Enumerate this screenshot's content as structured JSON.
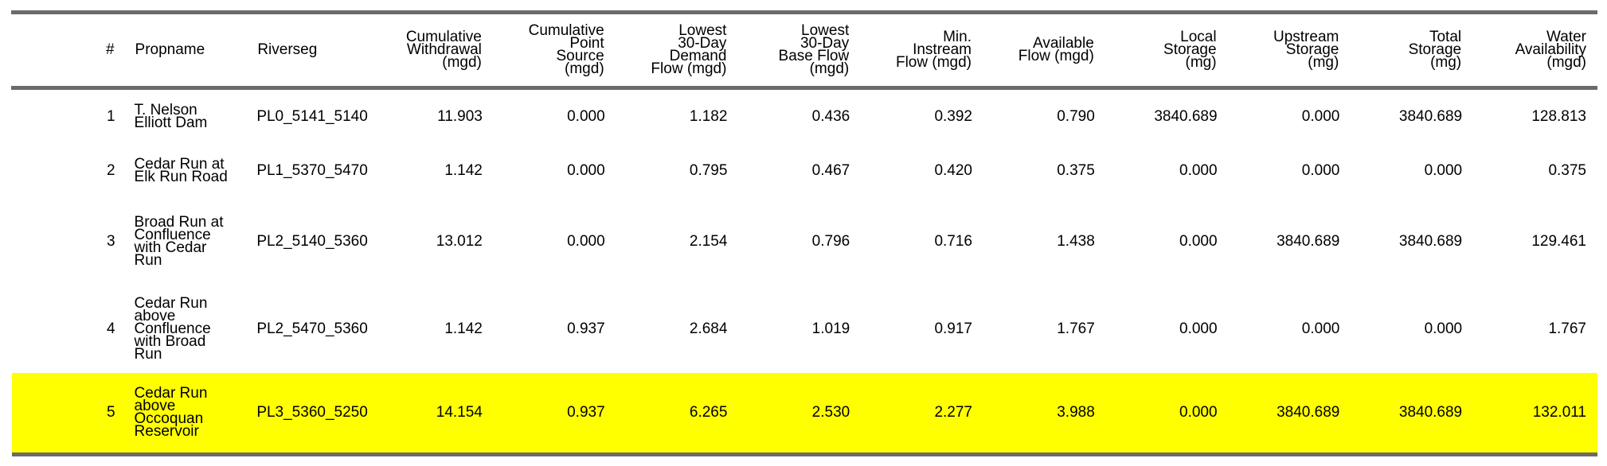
{
  "table": {
    "columns": [
      {
        "key": "idx",
        "label": "#",
        "align": "num"
      },
      {
        "key": "propname",
        "label": "Propname",
        "align": "txt"
      },
      {
        "key": "riverseg",
        "label": "Riverseg",
        "align": "txt"
      },
      {
        "key": "cum_withdrawal",
        "label": "Cumulative\nWithdrawal\n(mgd)",
        "align": "num"
      },
      {
        "key": "cum_point_source",
        "label": "Cumulative\nPoint\nSource\n(mgd)",
        "align": "num"
      },
      {
        "key": "lowest_demand",
        "label": "Lowest\n30-Day\nDemand\nFlow (mgd)",
        "align": "num"
      },
      {
        "key": "lowest_base",
        "label": "Lowest\n30-Day\nBase Flow\n(mgd)",
        "align": "num"
      },
      {
        "key": "min_instream",
        "label": "Min.\nInstream\nFlow (mgd)",
        "align": "num"
      },
      {
        "key": "available_flow",
        "label": "Available\nFlow (mgd)",
        "align": "num"
      },
      {
        "key": "local_storage",
        "label": "Local\nStorage\n(mg)",
        "align": "num"
      },
      {
        "key": "upstream_storage",
        "label": "Upstream\nStorage\n(mg)",
        "align": "num"
      },
      {
        "key": "total_storage",
        "label": "Total\nStorage\n(mg)",
        "align": "num"
      },
      {
        "key": "water_availability",
        "label": "Water\nAvailability\n(mgd)",
        "align": "num"
      }
    ],
    "rows": [
      {
        "idx": "1",
        "propname": "T. Nelson Elliott Dam",
        "riverseg": "PL0_5141_5140",
        "cum_withdrawal": "11.903",
        "cum_point_source": "0.000",
        "lowest_demand": "1.182",
        "lowest_base": "0.436",
        "min_instream": "0.392",
        "available_flow": "0.790",
        "local_storage": "3840.689",
        "upstream_storage": "0.000",
        "total_storage": "3840.689",
        "water_availability": "128.813"
      },
      {
        "idx": "2",
        "propname": "Cedar Run at Elk Run Road",
        "riverseg": "PL1_5370_5470",
        "cum_withdrawal": "1.142",
        "cum_point_source": "0.000",
        "lowest_demand": "0.795",
        "lowest_base": "0.467",
        "min_instream": "0.420",
        "available_flow": "0.375",
        "local_storage": "0.000",
        "upstream_storage": "0.000",
        "total_storage": "0.000",
        "water_availability": "0.375"
      },
      {
        "idx": "3",
        "propname": "Broad Run at Confluence with Cedar Run",
        "riverseg": "PL2_5140_5360",
        "cum_withdrawal": "13.012",
        "cum_point_source": "0.000",
        "lowest_demand": "2.154",
        "lowest_base": "0.796",
        "min_instream": "0.716",
        "available_flow": "1.438",
        "local_storage": "0.000",
        "upstream_storage": "3840.689",
        "total_storage": "3840.689",
        "water_availability": "129.461"
      },
      {
        "idx": "4",
        "propname": "Cedar Run above Confluence with Broad Run",
        "riverseg": "PL2_5470_5360",
        "cum_withdrawal": "1.142",
        "cum_point_source": "0.937",
        "lowest_demand": "2.684",
        "lowest_base": "1.019",
        "min_instream": "0.917",
        "available_flow": "1.767",
        "local_storage": "0.000",
        "upstream_storage": "0.000",
        "total_storage": "0.000",
        "water_availability": "1.767"
      },
      {
        "idx": "5",
        "propname": "Cedar Run above Occoquan Reservoir",
        "riverseg": "PL3_5360_5250",
        "cum_withdrawal": "14.154",
        "cum_point_source": "0.937",
        "lowest_demand": "6.265",
        "lowest_base": "2.530",
        "min_instream": "2.277",
        "available_flow": "3.988",
        "local_storage": "0.000",
        "upstream_storage": "3840.689",
        "total_storage": "3840.689",
        "water_availability": "132.011"
      }
    ],
    "highlight_row_index": 4,
    "highlight_color": "#ffff00",
    "rule_color": "#6b6b6b"
  }
}
